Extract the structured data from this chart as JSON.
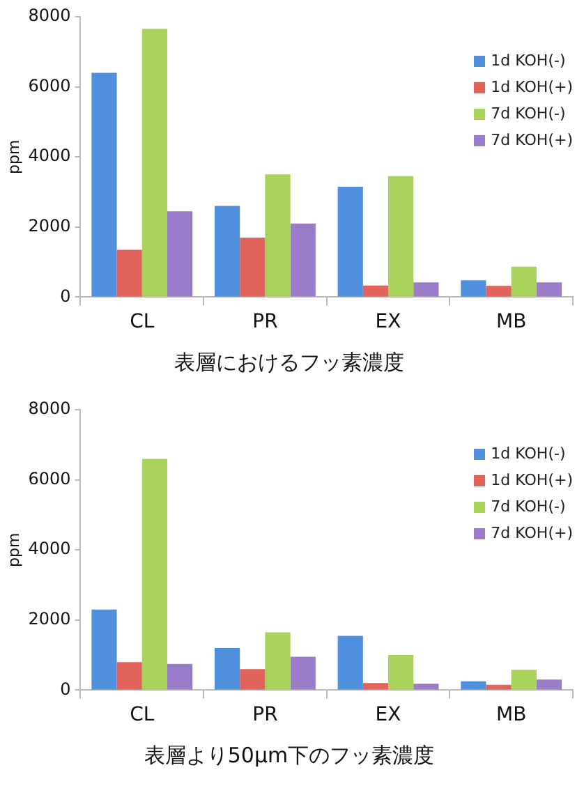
{
  "chart_data": [
    {
      "type": "bar",
      "title": "表層におけるフッ素濃度",
      "ylabel": "ppm",
      "categories": [
        "CL",
        "PR",
        "EX",
        "MB"
      ],
      "ylim": [
        0,
        8000
      ],
      "yticks": [
        0,
        2000,
        4000,
        6000,
        8000
      ],
      "grid": false,
      "legend": "top right",
      "series": [
        {
          "name": "1d KOH(-)",
          "color": "#4f8fdc",
          "values": [
            6400,
            2600,
            3150,
            480
          ]
        },
        {
          "name": "1d KOH(+)",
          "color": "#e0635c",
          "values": [
            1350,
            1700,
            330,
            320
          ]
        },
        {
          "name": "7d KOH(-)",
          "color": "#a8d25a",
          "values": [
            7650,
            3500,
            3450,
            870
          ]
        },
        {
          "name": "7d KOH(+)",
          "color": "#9a7cc8",
          "values": [
            2450,
            2100,
            420,
            420
          ]
        }
      ]
    },
    {
      "type": "bar",
      "title": "表層より50μm下のフッ素濃度",
      "ylabel": "ppm",
      "categories": [
        "CL",
        "PR",
        "EX",
        "MB"
      ],
      "ylim": [
        0,
        8000
      ],
      "yticks": [
        0,
        2000,
        4000,
        6000,
        8000
      ],
      "grid": false,
      "legend": "top right",
      "series": [
        {
          "name": "1d KOH(-)",
          "color": "#4f8fdc",
          "values": [
            2300,
            1200,
            1550,
            250
          ]
        },
        {
          "name": "1d KOH(+)",
          "color": "#e0635c",
          "values": [
            800,
            600,
            200,
            150
          ]
        },
        {
          "name": "7d KOH(-)",
          "color": "#a8d25a",
          "values": [
            6600,
            1650,
            1000,
            580
          ]
        },
        {
          "name": "7d KOH(+)",
          "color": "#9a7cc8",
          "values": [
            750,
            950,
            180,
            300
          ]
        }
      ]
    }
  ]
}
